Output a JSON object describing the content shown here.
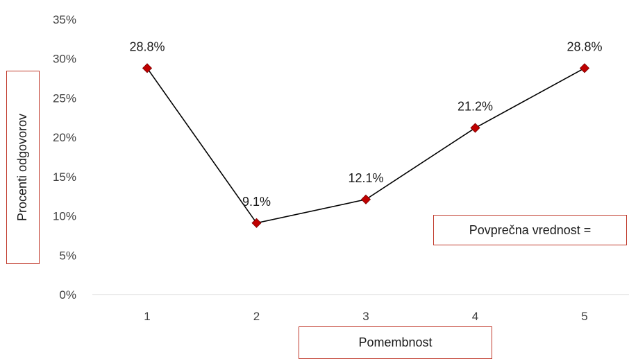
{
  "chart_data": {
    "type": "line",
    "categories": [
      "1",
      "2",
      "3",
      "4",
      "5"
    ],
    "values": [
      28.8,
      9.1,
      12.1,
      21.2,
      28.8
    ],
    "data_labels": [
      "28.8%",
      "9.1%",
      "12.1%",
      "21.2%",
      "28.8%"
    ],
    "ylim": [
      0,
      35
    ],
    "y_ticks": [
      "0%",
      "5%",
      "10%",
      "15%",
      "20%",
      "25%",
      "30%",
      "35%"
    ],
    "ylabel": "Procenti odgovorov",
    "xlabel": "Pomembnost",
    "annotation": "Povprečna vrednost =",
    "grid": false,
    "line_color": "#000000",
    "marker_color": "#c00000",
    "marker": "diamond"
  }
}
